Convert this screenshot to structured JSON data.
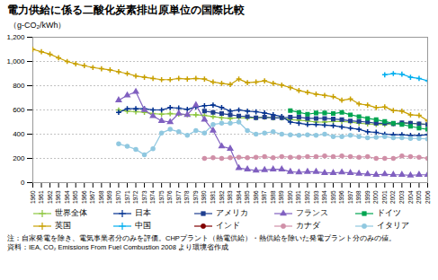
{
  "chart_data": {
    "type": "line",
    "title": "電力供給に係る二酸化炭素排出原単位の国際比較",
    "ylabel": "（g-CO₂/kWh）",
    "x": [
      1960,
      1961,
      1962,
      1963,
      1964,
      1965,
      1966,
      1967,
      1968,
      1969,
      1970,
      1971,
      1972,
      1973,
      1974,
      1975,
      1976,
      1977,
      1978,
      1979,
      1980,
      1981,
      1982,
      1983,
      1984,
      1985,
      1986,
      1987,
      1988,
      1989,
      1990,
      1991,
      1992,
      1993,
      1994,
      1995,
      1996,
      1997,
      1998,
      1999,
      2000,
      2001,
      2002,
      2003,
      2004,
      2005,
      2006
    ],
    "xlim": [
      1960,
      2006
    ],
    "xticks": [
      1960,
      1961,
      1962,
      1963,
      1964,
      1965,
      1966,
      1967,
      1968,
      1969,
      1970,
      1971,
      1972,
      1973,
      1974,
      1975,
      1976,
      1977,
      1978,
      1979,
      1980,
      1981,
      1982,
      1983,
      1984,
      1985,
      1986,
      1987,
      1988,
      1989,
      1990,
      1991,
      1992,
      1993,
      1994,
      1995,
      1996,
      1997,
      1998,
      1999,
      2000,
      2001,
      2002,
      2003,
      2004,
      2005,
      2006
    ],
    "ylim": [
      0,
      1200
    ],
    "yticks": [
      0,
      200,
      400,
      600,
      800,
      {
        "value": 1000,
        "label": "1,000"
      },
      {
        "value": 1200,
        "label": "1,200"
      }
    ],
    "grid": true,
    "legend": "bottom",
    "annotations": [
      "注：自家発電を除き、電気事業者分のみを評価。CHPプラント（熱電供給）・熱供給を除いた発電プラント分のみの値。",
      "資料：IEA, CO₂ Emissions From Fuel Combustion 2008 より環境省作成"
    ],
    "series": [
      {
        "name": "世界全体",
        "color": "#8dc63f",
        "marker": "plus",
        "values": [
          null,
          null,
          null,
          null,
          null,
          null,
          null,
          null,
          null,
          null,
          600,
          590,
          585,
          580,
          570,
          565,
          570,
          565,
          560,
          560,
          555,
          545,
          535,
          530,
          535,
          535,
          535,
          540,
          535,
          535,
          520,
          515,
          510,
          500,
          500,
          505,
          505,
          500,
          490,
          485,
          480,
          480,
          485,
          490,
          490,
          485,
          480
        ]
      },
      {
        "name": "日本",
        "color": "#00308f",
        "marker": "plus",
        "values": [
          null,
          null,
          null,
          null,
          null,
          null,
          null,
          null,
          null,
          null,
          580,
          610,
          610,
          610,
          600,
          600,
          620,
          615,
          605,
          625,
          635,
          640,
          620,
          590,
          600,
          590,
          585,
          575,
          560,
          545,
          500,
          490,
          480,
          480,
          475,
          470,
          460,
          450,
          440,
          420,
          415,
          400,
          395,
          395,
          390,
          390,
          395
        ]
      },
      {
        "name": "アメリカ",
        "color": "#1f3f8f",
        "marker": "square",
        "values": [
          null,
          null,
          null,
          null,
          null,
          null,
          null,
          null,
          null,
          null,
          null,
          null,
          null,
          null,
          null,
          null,
          null,
          null,
          null,
          null,
          590,
          580,
          570,
          560,
          550,
          545,
          535,
          540,
          535,
          535,
          540,
          540,
          530,
          530,
          530,
          525,
          520,
          510,
          505,
          500,
          490,
          490,
          485,
          495,
          490,
          485,
          480
        ]
      },
      {
        "name": "フランス",
        "color": "#8060c0",
        "marker": "triangle",
        "values": [
          null,
          null,
          null,
          null,
          null,
          null,
          null,
          null,
          null,
          null,
          680,
          720,
          750,
          600,
          550,
          510,
          500,
          570,
          560,
          640,
          520,
          430,
          300,
          280,
          120,
          110,
          100,
          105,
          110,
          110,
          90,
          85,
          90,
          90,
          80,
          80,
          85,
          80,
          75,
          70,
          65,
          70,
          65,
          65,
          60,
          65,
          65
        ]
      },
      {
        "name": "ドイツ",
        "color": "#00a550",
        "marker": "square",
        "values": [
          null,
          null,
          null,
          null,
          null,
          null,
          null,
          null,
          null,
          null,
          null,
          null,
          null,
          null,
          null,
          null,
          null,
          null,
          null,
          null,
          null,
          null,
          null,
          null,
          null,
          null,
          null,
          null,
          null,
          null,
          595,
          580,
          565,
          575,
          575,
          570,
          580,
          560,
          545,
          530,
          520,
          505,
          490,
          480,
          465,
          450,
          440
        ]
      },
      {
        "name": "英国",
        "color": "#c8a000",
        "marker": "plus",
        "values": [
          1100,
          1080,
          1060,
          1030,
          1000,
          980,
          965,
          950,
          940,
          930,
          915,
          900,
          880,
          870,
          860,
          850,
          850,
          860,
          855,
          860,
          855,
          830,
          820,
          810,
          855,
          825,
          830,
          840,
          820,
          805,
          785,
          760,
          745,
          730,
          720,
          710,
          680,
          690,
          650,
          640,
          620,
          625,
          595,
          590,
          560,
          555,
          510
        ]
      },
      {
        "name": "中国",
        "color": "#00aeef",
        "marker": "plus",
        "values": [
          null,
          null,
          null,
          null,
          null,
          null,
          null,
          null,
          null,
          null,
          null,
          null,
          null,
          null,
          null,
          null,
          null,
          null,
          null,
          null,
          null,
          null,
          null,
          null,
          null,
          null,
          null,
          null,
          null,
          null,
          null,
          null,
          null,
          null,
          null,
          null,
          null,
          null,
          null,
          null,
          null,
          890,
          900,
          895,
          870,
          860,
          840
        ]
      },
      {
        "name": "インド",
        "color": "#800000",
        "marker": "circle",
        "values": [
          null,
          null,
          null,
          null,
          null,
          null,
          null,
          null,
          null,
          null,
          null,
          null,
          null,
          null,
          null,
          null,
          null,
          null,
          null,
          null,
          null,
          null,
          null,
          null,
          null,
          null,
          null,
          null,
          null,
          null,
          null,
          null,
          null,
          null,
          null,
          null,
          null,
          null,
          null,
          null,
          null,
          null,
          null,
          null,
          null,
          null,
          null
        ]
      },
      {
        "name": "カナダ",
        "color": "#d090a8",
        "marker": "circle",
        "values": [
          null,
          null,
          null,
          null,
          null,
          null,
          null,
          null,
          null,
          null,
          null,
          null,
          null,
          null,
          null,
          null,
          null,
          null,
          null,
          null,
          200,
          205,
          200,
          205,
          210,
          205,
          210,
          215,
          205,
          215,
          210,
          210,
          215,
          215,
          220,
          215,
          220,
          215,
          210,
          215,
          200,
          200,
          200,
          220,
          215,
          210,
          200
        ]
      },
      {
        "name": "イタリア",
        "color": "#90c8e0",
        "marker": "circle",
        "values": [
          null,
          null,
          null,
          null,
          null,
          null,
          null,
          null,
          null,
          null,
          320,
          300,
          275,
          230,
          280,
          410,
          440,
          420,
          390,
          430,
          410,
          480,
          490,
          490,
          500,
          430,
          400,
          410,
          420,
          400,
          395,
          390,
          395,
          390,
          400,
          380,
          380,
          390,
          380,
          370,
          375,
          380,
          370,
          370,
          365,
          365,
          360
        ]
      }
    ]
  }
}
